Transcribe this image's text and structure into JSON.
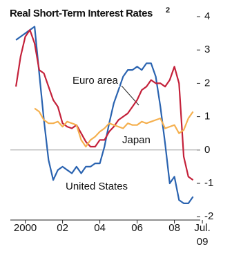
{
  "chart_data": {
    "type": "line",
    "title": "Real Short-Term Interest Rates",
    "title_superscript": "2",
    "x": [
      1999.5,
      1999.75,
      2000.0,
      2000.25,
      2000.5,
      2000.75,
      2001.0,
      2001.25,
      2001.5,
      2001.75,
      2002.0,
      2002.25,
      2002.5,
      2002.75,
      2003.0,
      2003.25,
      2003.5,
      2003.75,
      2004.0,
      2004.25,
      2004.5,
      2004.75,
      2005.0,
      2005.25,
      2005.5,
      2005.75,
      2006.0,
      2006.25,
      2006.5,
      2006.75,
      2007.0,
      2007.25,
      2007.5,
      2007.75,
      2008.0,
      2008.25,
      2008.5,
      2008.75,
      2009.0
    ],
    "series": [
      {
        "name": "United States",
        "color": "#2a63b0",
        "values": [
          3.3,
          3.4,
          3.5,
          3.6,
          3.7,
          2.3,
          0.9,
          -0.3,
          -0.9,
          -0.6,
          -0.5,
          -0.6,
          -0.7,
          -0.5,
          -0.7,
          -0.5,
          -0.5,
          -0.4,
          -0.4,
          0.1,
          0.8,
          1.4,
          1.8,
          2.2,
          2.4,
          2.4,
          2.5,
          2.4,
          2.6,
          2.6,
          2.2,
          1.3,
          0.2,
          -1.0,
          -0.8,
          -1.5,
          -1.6,
          -1.6,
          -1.4
        ]
      },
      {
        "name": "Euro area",
        "color": "#c4213a",
        "values": [
          1.9,
          2.8,
          3.4,
          3.6,
          3.2,
          2.4,
          2.3,
          1.9,
          1.5,
          1.3,
          0.8,
          0.7,
          0.65,
          0.75,
          0.5,
          0.25,
          0.1,
          0.1,
          0.3,
          0.3,
          0.55,
          0.7,
          0.9,
          1.0,
          1.1,
          1.3,
          1.5,
          1.8,
          1.9,
          2.1,
          2.0,
          2.0,
          1.9,
          2.1,
          2.5,
          2.0,
          -0.2,
          -0.8,
          -0.9
        ]
      },
      {
        "name": "Japan",
        "color": "#f5b04f",
        "values": [
          null,
          null,
          null,
          null,
          1.25,
          1.15,
          0.9,
          0.8,
          0.8,
          0.85,
          0.7,
          0.85,
          0.8,
          0.75,
          0.3,
          0.1,
          0.3,
          0.4,
          0.55,
          0.65,
          0.8,
          0.75,
          0.7,
          0.65,
          0.8,
          0.75,
          0.75,
          0.85,
          0.8,
          0.85,
          0.9,
          0.95,
          0.65,
          0.7,
          0.75,
          0.5,
          0.6,
          0.95,
          1.15
        ]
      }
    ],
    "xlim": [
      1999.2,
      2009.6
    ],
    "xticks": [
      2000,
      {
        "value": 2002,
        "label": "02"
      },
      {
        "value": 2004,
        "label": "04"
      },
      {
        "value": 2006,
        "label": "06"
      },
      {
        "value": 2008,
        "label": "08"
      },
      {
        "value": 2009.5,
        "label": "Jul. 09"
      }
    ],
    "ylim": [
      -2.1,
      4.2
    ],
    "yticks": [
      4,
      3,
      2,
      1,
      0,
      -1,
      -2
    ],
    "y_axis_side": "right",
    "zero_line": true
  }
}
